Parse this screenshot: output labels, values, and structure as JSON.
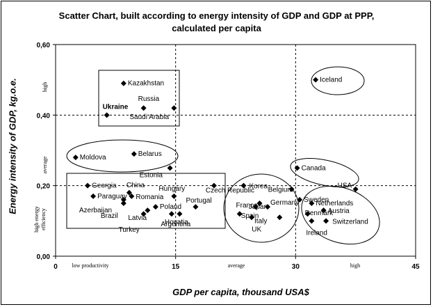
{
  "chart_data": {
    "type": "scatter",
    "title": "Scatter Chart, built according to energy intensity of GDP and GDP at PPP,",
    "subtitle": "calculated per capita",
    "xlabel": "GDP per capita, thousand USA$",
    "ylabel": "Energy intensity of GDP, kg.o.e.",
    "xlim": [
      0,
      45
    ],
    "ylim": [
      0,
      0.6
    ],
    "x_ticks": [
      "0",
      "15",
      "30",
      "45"
    ],
    "y_ticks": [
      "0,00",
      "0,20",
      "0,40",
      "0,60"
    ],
    "x_zone_labels": [
      "low productivity",
      "average",
      "high"
    ],
    "y_zone_labels": [
      "high energy efficiency",
      "average",
      "high"
    ],
    "grid": "dashed reference lines at x=15, x=30, y=0.2, y=0.4",
    "points": [
      {
        "label": "Kazakhstan",
        "x": 8.5,
        "y": 0.49
      },
      {
        "label": "Russia",
        "x": 11,
        "y": 0.42
      },
      {
        "label": "Ukraine",
        "x": 6.4,
        "y": 0.4,
        "bold": true
      },
      {
        "label": "Saudi Arabia",
        "x": 14.8,
        "y": 0.42
      },
      {
        "label": "Iceland",
        "x": 32.5,
        "y": 0.5
      },
      {
        "label": "Moldova",
        "x": 2.5,
        "y": 0.28
      },
      {
        "label": "Belarus",
        "x": 9.8,
        "y": 0.29
      },
      {
        "label": "Estonia",
        "x": 14.3,
        "y": 0.25
      },
      {
        "label": "Georgia",
        "x": 4,
        "y": 0.2
      },
      {
        "label": "Paraguay",
        "x": 4.7,
        "y": 0.17
      },
      {
        "label": "Azerbaijan",
        "x": 8.5,
        "y": 0.15
      },
      {
        "label": "China",
        "x": 9.2,
        "y": 0.18
      },
      {
        "label": "Romania",
        "x": 9.5,
        "y": 0.17
      },
      {
        "label": "Brazil",
        "x": 8.5,
        "y": 0.16
      },
      {
        "label": "Latvia",
        "x": 11.5,
        "y": 0.13
      },
      {
        "label": "Turkey",
        "x": 11,
        "y": 0.12
      },
      {
        "label": "Hungary",
        "x": 14.8,
        "y": 0.17
      },
      {
        "label": "Poland",
        "x": 12.5,
        "y": 0.14
      },
      {
        "label": "Hovatia",
        "x": 14.5,
        "y": 0.12
      },
      {
        "label": "Portugal",
        "x": 17.5,
        "y": 0.14
      },
      {
        "label": "Argentina",
        "x": 15.5,
        "y": 0.12
      },
      {
        "label": "Czech Republic",
        "x": 19.8,
        "y": 0.2
      },
      {
        "label": "Korea",
        "x": 23.5,
        "y": 0.2
      },
      {
        "label": "Belgium",
        "x": 29.5,
        "y": 0.19
      },
      {
        "label": "France",
        "x": 25.5,
        "y": 0.15
      },
      {
        "label": "Germany",
        "x": 26.5,
        "y": 0.14
      },
      {
        "label": "Japan",
        "x": 25,
        "y": 0.14
      },
      {
        "label": "Spain",
        "x": 23,
        "y": 0.12
      },
      {
        "label": "Italy",
        "x": 24.5,
        "y": 0.11
      },
      {
        "label": "UK",
        "x": 28,
        "y": 0.11
      },
      {
        "label": "Canada",
        "x": 30.2,
        "y": 0.25
      },
      {
        "label": "USA",
        "x": 37.5,
        "y": 0.19
      },
      {
        "label": "Sweden",
        "x": 30.5,
        "y": 0.16
      },
      {
        "label": "Netherlands",
        "x": 32,
        "y": 0.15
      },
      {
        "label": "Denmark",
        "x": 31.5,
        "y": 0.12
      },
      {
        "label": "Austria",
        "x": 33.5,
        "y": 0.13
      },
      {
        "label": "Switzerland",
        "x": 33.8,
        "y": 0.1
      },
      {
        "label": "Ireland",
        "x": 32,
        "y": 0.1
      }
    ]
  }
}
